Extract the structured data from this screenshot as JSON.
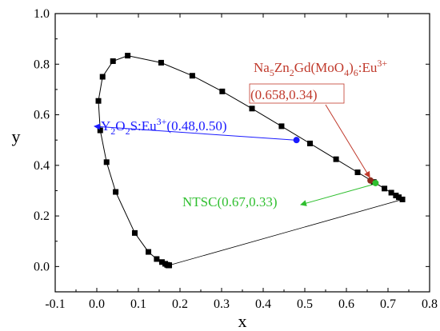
{
  "chart_data": {
    "type": "scatter",
    "title": "",
    "xlabel": "x",
    "ylabel": "y",
    "xlim": [
      -0.1,
      0.8
    ],
    "ylim": [
      -0.1,
      1.0
    ],
    "x_ticks": [
      "-0.1",
      "0.0",
      "0.1",
      "0.2",
      "0.3",
      "0.4",
      "0.5",
      "0.6",
      "0.7",
      "0.8"
    ],
    "y_ticks": [
      "0.0",
      "0.2",
      "0.4",
      "0.6",
      "0.8",
      "1.0"
    ],
    "grid": false,
    "series": [
      {
        "marker": "square",
        "color": "#000000",
        "x": [
          0.1741,
          0.1738,
          0.1733,
          0.1726,
          0.1714,
          0.1689,
          0.1644,
          0.1566,
          0.144,
          0.1241,
          0.0913,
          0.0454,
          0.0082,
          0.0139,
          0.0743,
          0.1547,
          0.2296,
          0.3016,
          0.3731,
          0.4441,
          0.5125,
          0.5752,
          0.627,
          0.6658,
          0.6915,
          0.7079,
          0.719,
          0.726,
          0.7347,
          0.0039,
          0.0235,
          0.0389
        ],
        "y": [
          0.005,
          0.0049,
          0.0048,
          0.0048,
          0.0051,
          0.0069,
          0.0109,
          0.0177,
          0.0297,
          0.0578,
          0.1327,
          0.295,
          0.5384,
          0.7502,
          0.8338,
          0.8059,
          0.7543,
          0.6923,
          0.6245,
          0.5547,
          0.4866,
          0.4242,
          0.3725,
          0.334,
          0.3083,
          0.292,
          0.2809,
          0.274,
          0.2653,
          0.6548,
          0.4127,
          0.812
        ]
      },
      {
        "name": "boundary",
        "style": "line",
        "color": "#000000"
      }
    ],
    "highlighted_points": [
      {
        "label": "Y2O2S:Eu3+ (0.48,0.50)",
        "x": 0.48,
        "y": 0.5,
        "color": "#1a1aff"
      },
      {
        "label": "Na5Zn2Gd(MoO4)6:Eu3+",
        "x": 0.658,
        "y": 0.34,
        "color": "#8b2a1c"
      },
      {
        "label": "NTSC(0.67,0.33)",
        "x": 0.67,
        "y": 0.33,
        "color": "#2fbf2f"
      }
    ],
    "annotations": {
      "na": {
        "color": "#c0392b",
        "formula_parts": [
          {
            "t": "Na",
            "s": "n"
          },
          {
            "t": "5",
            "s": "sub"
          },
          {
            "t": "Zn",
            "s": "n"
          },
          {
            "t": "2",
            "s": "sub"
          },
          {
            "t": "Gd(MoO",
            "s": "n"
          },
          {
            "t": "4",
            "s": "sub"
          },
          {
            "t": ")",
            "s": "n"
          },
          {
            "t": "6",
            "s": "sub"
          },
          {
            "t": ":Eu",
            "s": "n"
          },
          {
            "t": "3+",
            "s": "sup"
          }
        ],
        "coords": "(0.658,0.34)"
      },
      "y2o2s": {
        "color": "#1a1aff",
        "formula_parts": [
          {
            "t": "Y",
            "s": "n"
          },
          {
            "t": "2",
            "s": "sub"
          },
          {
            "t": "O",
            "s": "n"
          },
          {
            "t": "2",
            "s": "sub"
          },
          {
            "t": "S:Eu",
            "s": "n"
          },
          {
            "t": "3+",
            "s": "sup"
          },
          {
            "t": "(0.48,0.50)",
            "s": "n"
          }
        ]
      },
      "ntsc": {
        "color": "#2fbf2f",
        "text": "NTSC(0.67,0.33)"
      }
    }
  }
}
